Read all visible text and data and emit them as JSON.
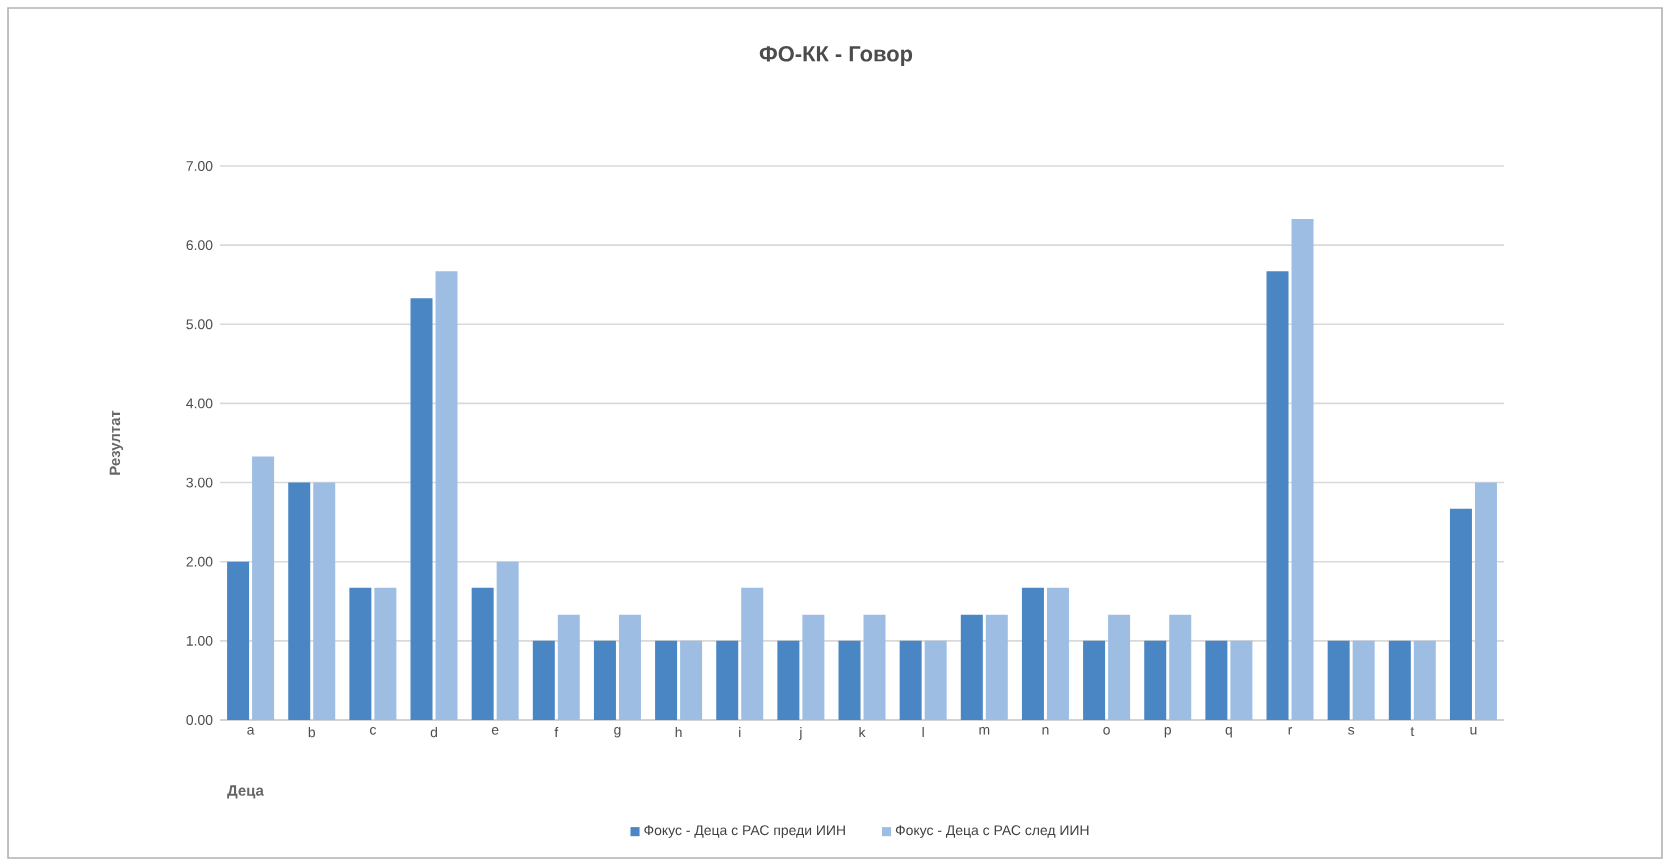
{
  "chart_data": {
    "type": "bar",
    "title": "ФО-КК  - Говор",
    "xlabel": "Деца",
    "ylabel": "Резултат",
    "categories": [
      "a",
      "b",
      "c",
      "d",
      "e",
      "f",
      "g",
      "h",
      "i",
      "j",
      "k",
      "l",
      "m",
      "n",
      "o",
      "p",
      "q",
      "r",
      "s",
      "t",
      "u"
    ],
    "series": [
      {
        "name": "Фокус - Деца с РАС преди ИИН",
        "color": "#4a86c3",
        "values": [
          2,
          3,
          1.67,
          5.33,
          1.67,
          1,
          1,
          1,
          1,
          1,
          1,
          1,
          1.33,
          1.67,
          1,
          1,
          1,
          5.67,
          1,
          1,
          2.67
        ]
      },
      {
        "name": "Фокус - Деца с РАС след ИИН",
        "color": "#9dbde3",
        "values": [
          3.33,
          3,
          1.67,
          5.67,
          2,
          1.33,
          1.33,
          1,
          1.67,
          1.33,
          1.33,
          1,
          1.33,
          1.67,
          1.33,
          1.33,
          1,
          6.33,
          1,
          1,
          3
        ]
      }
    ],
    "ylim": [
      0,
      7
    ],
    "yticks": [
      {
        "value": 0,
        "label": "0.00"
      },
      {
        "value": 1,
        "label": "1.00"
      },
      {
        "value": 2,
        "label": "2.00"
      },
      {
        "value": 3,
        "label": "3.00"
      },
      {
        "value": 4,
        "label": "4.00"
      },
      {
        "value": 5,
        "label": "5.00"
      },
      {
        "value": 6,
        "label": "6.00"
      },
      {
        "value": 7,
        "label": "7.00"
      }
    ],
    "grid": "y",
    "legend": "bottom"
  }
}
